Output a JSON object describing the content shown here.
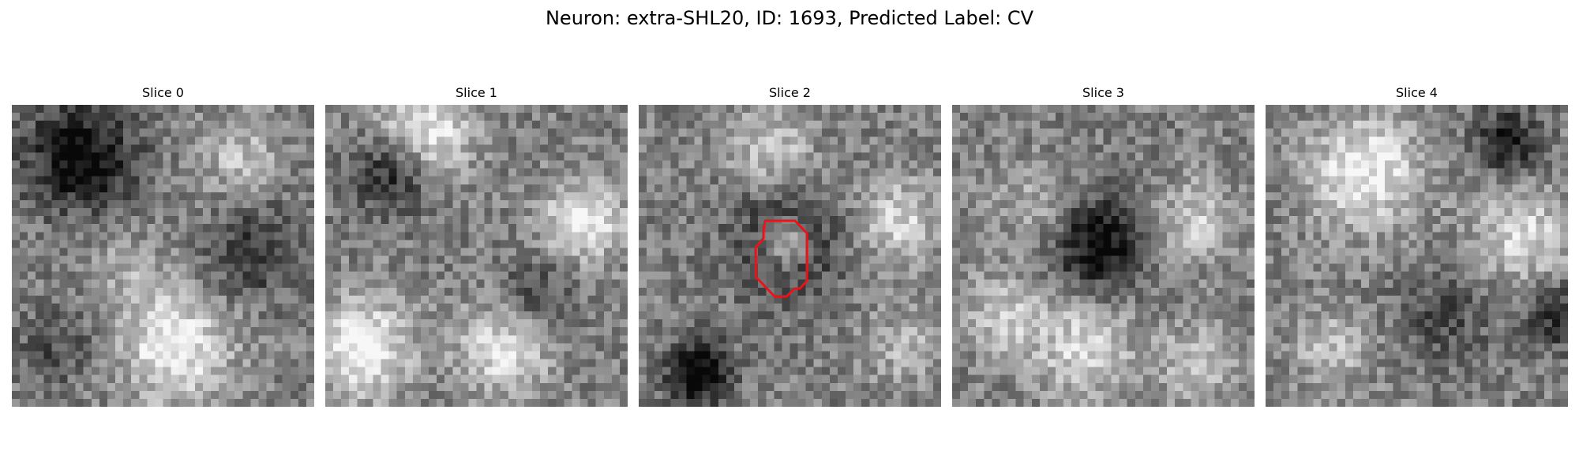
{
  "figure": {
    "title": "Neuron: extra-SHL20, ID: 1693, Predicted Label: CV"
  },
  "panels": [
    {
      "label": "Slice 0",
      "seed": 11,
      "style": "blotchy-dark-top"
    },
    {
      "label": "Slice 1",
      "seed": 23,
      "style": "bright-blobs"
    },
    {
      "label": "Slice 2",
      "seed": 37,
      "style": "ring-center"
    },
    {
      "label": "Slice 3",
      "seed": 51,
      "style": "dark-center"
    },
    {
      "label": "Slice 4",
      "seed": 67,
      "style": "bright-upper"
    }
  ],
  "roi": {
    "panel_index": 2,
    "color": "#e8141c",
    "shape": "octagon-contour"
  },
  "colormap": "gray"
}
